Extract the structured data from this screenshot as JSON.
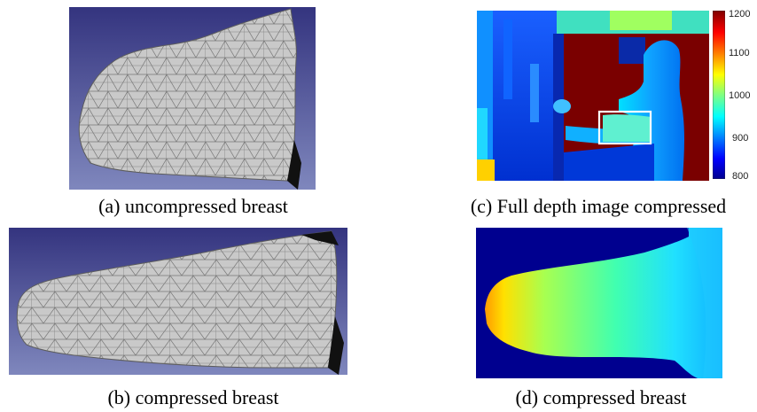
{
  "figure": {
    "panels": [
      {
        "id": "a",
        "caption": "(a) uncompressed breast"
      },
      {
        "id": "b",
        "caption": "(b) compressed breast"
      },
      {
        "id": "c",
        "caption": "(c) Full depth image compressed"
      },
      {
        "id": "d",
        "caption": "(d) compressed breast"
      }
    ],
    "colorbar": {
      "ticks": [
        "1200",
        "1100",
        "1000",
        "900",
        "800"
      ],
      "range": [
        800,
        1200
      ]
    },
    "colors": {
      "mesh_bg_top": "#3a3a86",
      "mesh_bg_bottom": "#7a82b8",
      "mesh_fill": "#c8c8c8",
      "mesh_edge": "#6a6a6a",
      "jet_low": "#00008f",
      "jet_high": "#800000",
      "highlight_box": "#ffffff"
    }
  }
}
